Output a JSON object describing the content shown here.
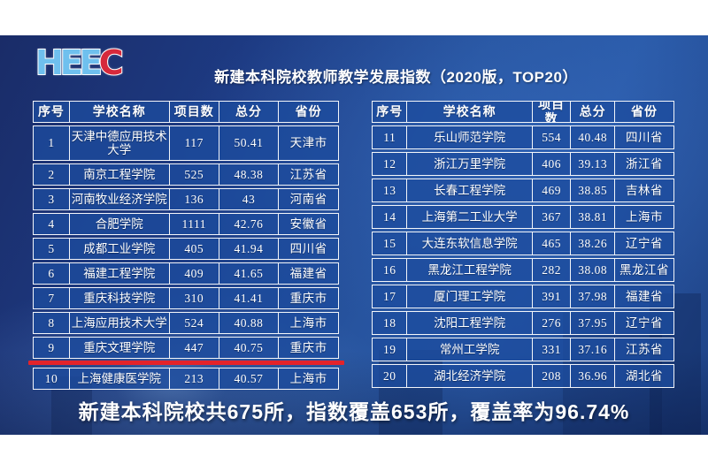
{
  "logo": {
    "blue": "HEE",
    "red": "C"
  },
  "title": "新建本科院校教师教学发展指数（2020版，TOP20）",
  "footer": "新建本科院校共675所，指数覆盖653所，覆盖率为96.74%",
  "table_headers": [
    "序号",
    "学校名称",
    "项目数",
    "总分",
    "省份"
  ],
  "left_table": {
    "rows": [
      {
        "rank": "1",
        "school": "天津中德应用技术大学",
        "projects": "117",
        "score": "50.41",
        "province": "天津市"
      },
      {
        "rank": "2",
        "school": "南京工程学院",
        "projects": "525",
        "score": "48.38",
        "province": "江苏省"
      },
      {
        "rank": "3",
        "school": "河南牧业经济学院",
        "projects": "136",
        "score": "43",
        "province": "河南省"
      },
      {
        "rank": "4",
        "school": "合肥学院",
        "projects": "1111",
        "score": "42.76",
        "province": "安徽省"
      },
      {
        "rank": "5",
        "school": "成都工业学院",
        "projects": "405",
        "score": "41.94",
        "province": "四川省"
      },
      {
        "rank": "6",
        "school": "福建工程学院",
        "projects": "409",
        "score": "41.65",
        "province": "福建省"
      },
      {
        "rank": "7",
        "school": "重庆科技学院",
        "projects": "310",
        "score": "41.41",
        "province": "重庆市"
      },
      {
        "rank": "8",
        "school": "上海应用技术大学",
        "projects": "524",
        "score": "40.88",
        "province": "上海市"
      },
      {
        "rank": "9",
        "school": "重庆文理学院",
        "projects": "447",
        "score": "40.75",
        "province": "重庆市"
      },
      {
        "rank": "10",
        "school": "上海健康医学院",
        "projects": "213",
        "score": "40.57",
        "province": "上海市"
      }
    ]
  },
  "right_table": {
    "rows": [
      {
        "rank": "11",
        "school": "乐山师范学院",
        "projects": "554",
        "score": "40.48",
        "province": "四川省"
      },
      {
        "rank": "12",
        "school": "浙江万里学院",
        "projects": "406",
        "score": "39.13",
        "province": "浙江省"
      },
      {
        "rank": "13",
        "school": "长春工程学院",
        "projects": "469",
        "score": "38.85",
        "province": "吉林省"
      },
      {
        "rank": "14",
        "school": "上海第二工业大学",
        "projects": "367",
        "score": "38.81",
        "province": "上海市"
      },
      {
        "rank": "15",
        "school": "大连东软信息学院",
        "projects": "465",
        "score": "38.26",
        "province": "辽宁省"
      },
      {
        "rank": "16",
        "school": "黑龙江工程学院",
        "projects": "282",
        "score": "38.08",
        "province": "黑龙江省"
      },
      {
        "rank": "17",
        "school": "厦门理工学院",
        "projects": "391",
        "score": "37.98",
        "province": "福建省"
      },
      {
        "rank": "18",
        "school": "沈阳工程学院",
        "projects": "276",
        "score": "37.95",
        "province": "辽宁省"
      },
      {
        "rank": "19",
        "school": "常州工学院",
        "projects": "331",
        "score": "37.16",
        "province": "江苏省"
      },
      {
        "rank": "20",
        "school": "湖北经济学院",
        "projects": "208",
        "score": "36.96",
        "province": "湖北省"
      }
    ]
  },
  "highlight": {
    "note_row_rank": "9"
  },
  "colors": {
    "accent_red": "#e3232a",
    "cell_blue": "#1e4e9e",
    "background_navy": "#1d3a82",
    "logo_blue": "#6fc0ee",
    "logo_red": "#d6293c",
    "text_white": "#ffffff"
  }
}
